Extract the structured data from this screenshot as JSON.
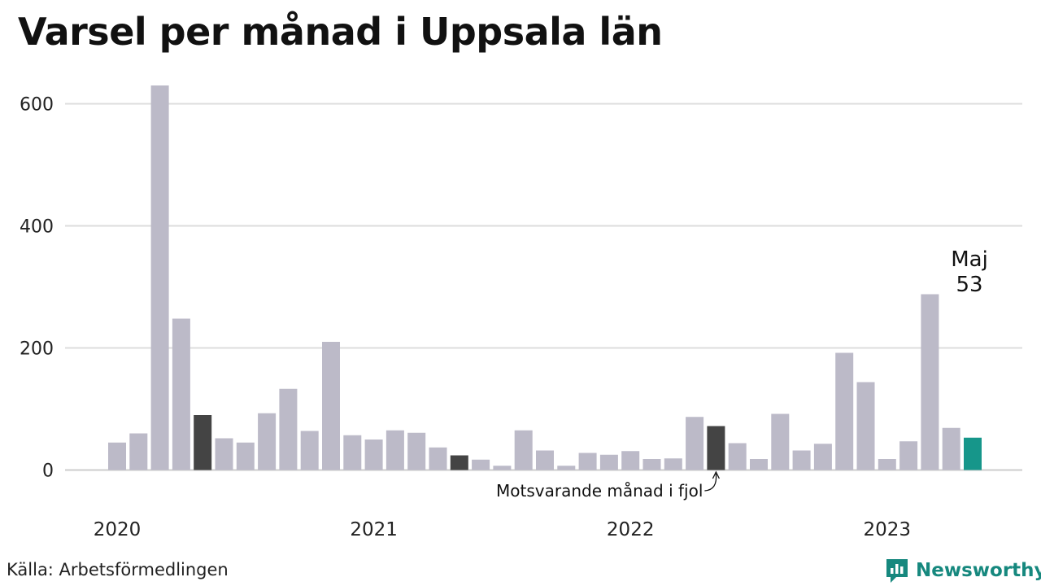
{
  "title": "Varsel per månad i Uppsala län",
  "source": "Källa: Arbetsförmedlingen",
  "brand": "Newsworthy",
  "colors": {
    "bar": "#bcbac8",
    "highlight": "#444444",
    "current": "#16968a",
    "grid": "#dddddd",
    "brand": "#16887e"
  },
  "chart_data": {
    "type": "bar",
    "grid": true,
    "ylim": [
      0,
      600
    ],
    "yticks": [
      0,
      200,
      400,
      600
    ],
    "xtick_labels": [
      {
        "label": "2020",
        "index": 0
      },
      {
        "label": "2021",
        "index": 12
      },
      {
        "label": "2022",
        "index": 24
      },
      {
        "label": "2023",
        "index": 36
      }
    ],
    "values": [
      45,
      60,
      630,
      248,
      90,
      52,
      45,
      93,
      133,
      64,
      210,
      57,
      50,
      65,
      61,
      37,
      24,
      17,
      7,
      65,
      32,
      7,
      28,
      25,
      31,
      18,
      19,
      87,
      72,
      44,
      18,
      92,
      32,
      43,
      192,
      144,
      18,
      47,
      288,
      69,
      53
    ],
    "highlight_indices": [
      4,
      16,
      28
    ],
    "current_index": 40,
    "current_label": {
      "month": "Maj",
      "value": "53"
    },
    "annotation": {
      "text": "Motsvarande månad i fjol",
      "index": 28
    }
  }
}
